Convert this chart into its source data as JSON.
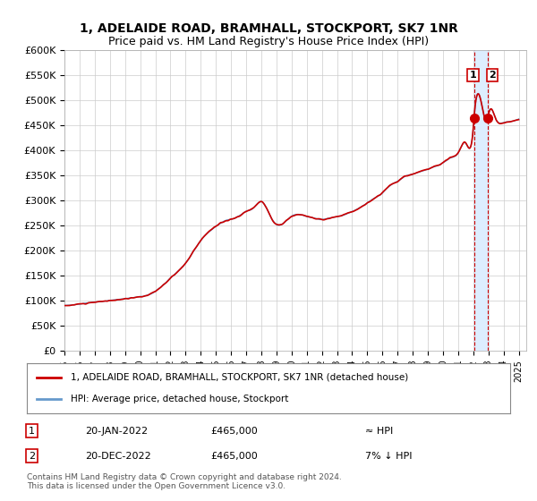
{
  "title1": "1, ADELAIDE ROAD, BRAMHALL, STOCKPORT, SK7 1NR",
  "title2": "Price paid vs. HM Land Registry's House Price Index (HPI)",
  "legend_line1": "1, ADELAIDE ROAD, BRAMHALL, STOCKPORT, SK7 1NR (detached house)",
  "legend_line2": "HPI: Average price, detached house, Stockport",
  "annotation1_label": "1",
  "annotation1_date": "20-JAN-2022",
  "annotation1_price": "£465,000",
  "annotation1_hpi": "≈ HPI",
  "annotation2_label": "2",
  "annotation2_date": "20-DEC-2022",
  "annotation2_price": "£465,000",
  "annotation2_hpi": "7% ↓ HPI",
  "footer1": "Contains HM Land Registry data © Crown copyright and database right 2024.",
  "footer2": "This data is licensed under the Open Government Licence v3.0.",
  "hpi_color": "#6699cc",
  "price_color": "#cc0000",
  "marker_color": "#cc0000",
  "vshade_color": "#ddeeff",
  "vline_color": "#cc0000",
  "grid_color": "#cccccc",
  "bg_color": "#ffffff",
  "ylim": [
    0,
    600000
  ],
  "yticks": [
    0,
    50000,
    100000,
    150000,
    200000,
    250000,
    300000,
    350000,
    400000,
    450000,
    500000,
    550000,
    600000
  ],
  "sale1_year": 2022.05,
  "sale2_year": 2022.97,
  "sale1_price": 465000,
  "sale2_price": 465000
}
